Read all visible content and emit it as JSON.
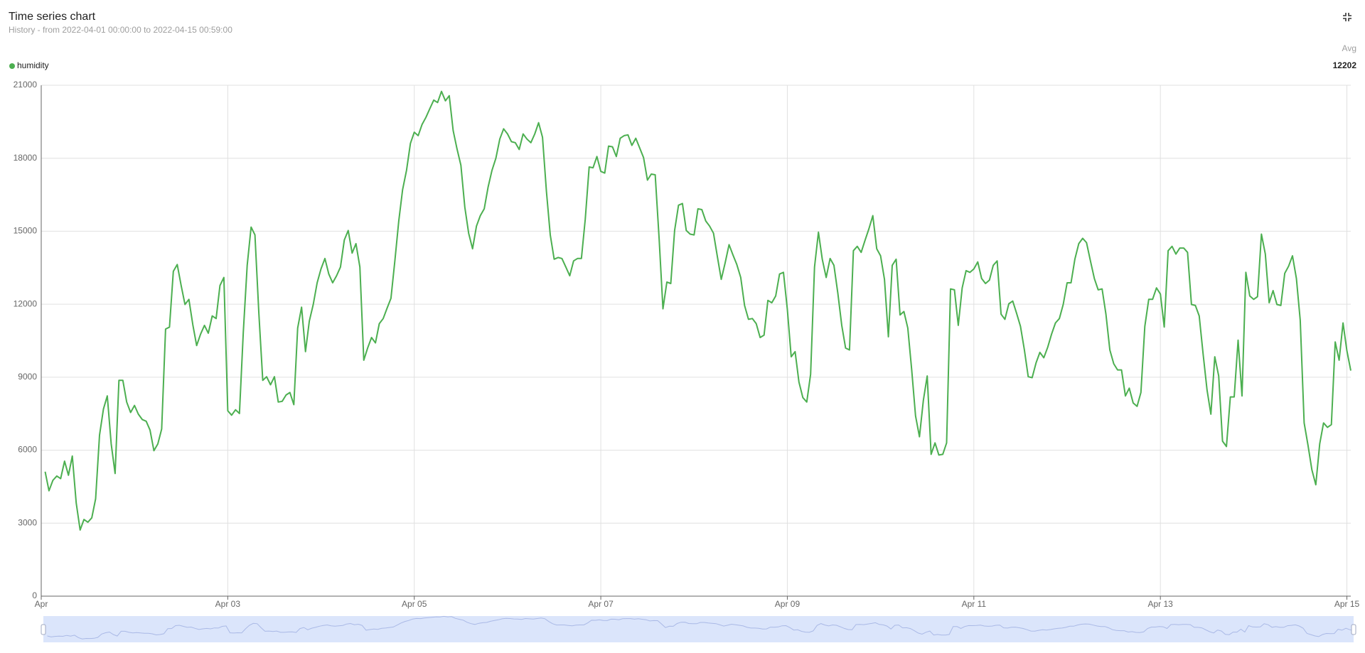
{
  "chart_data": {
    "type": "line",
    "title": "Time series chart",
    "subtitle": "History - from 2022-04-01 00:00:00 to 2022-04-15 00:59:00",
    "legend_stat_label": "Avg",
    "grid": true,
    "xlim": [
      0,
      337
    ],
    "xticks": [
      {
        "value": 0,
        "label": "Apr"
      },
      {
        "value": 48,
        "label": "Apr 03"
      },
      {
        "value": 96,
        "label": "Apr 05"
      },
      {
        "value": 144,
        "label": "Apr 07"
      },
      {
        "value": 192,
        "label": "Apr 09"
      },
      {
        "value": 240,
        "label": "Apr 11"
      },
      {
        "value": 288,
        "label": "Apr 13"
      },
      {
        "value": 336,
        "label": "Apr 15"
      }
    ],
    "ylim": [
      0,
      21000
    ],
    "yticks": [
      0,
      3000,
      6000,
      9000,
      12000,
      15000,
      18000,
      21000
    ],
    "x": [
      1,
      2,
      3,
      4,
      5,
      6,
      7,
      8,
      9,
      10,
      11,
      12,
      13,
      14,
      15,
      16,
      17,
      18,
      19,
      20,
      21,
      22,
      23,
      24,
      25,
      26,
      27,
      28,
      29,
      30,
      31,
      32,
      33,
      34,
      35,
      36,
      37,
      38,
      39,
      40,
      41,
      42,
      43,
      44,
      45,
      46,
      47,
      48,
      49,
      50,
      51,
      52,
      53,
      54,
      55,
      56,
      57,
      58,
      59,
      60,
      61,
      62,
      63,
      64,
      65,
      66,
      67,
      68,
      69,
      70,
      71,
      72,
      73,
      74,
      75,
      76,
      77,
      78,
      79,
      80,
      81,
      82,
      83,
      84,
      85,
      86,
      87,
      88,
      89,
      90,
      91,
      92,
      93,
      94,
      95,
      96,
      97,
      98,
      99,
      100,
      101,
      102,
      103,
      104,
      105,
      106,
      107,
      108,
      109,
      110,
      111,
      112,
      113,
      114,
      115,
      116,
      117,
      118,
      119,
      120,
      121,
      122,
      123,
      124,
      125,
      126,
      127,
      128,
      129,
      130,
      131,
      132,
      133,
      134,
      135,
      136,
      137,
      138,
      139,
      140,
      141,
      142,
      143,
      144,
      145,
      146,
      147,
      148,
      149,
      150,
      151,
      152,
      153,
      154,
      155,
      156,
      157,
      158,
      159,
      160,
      161,
      162,
      163,
      164,
      165,
      166,
      167,
      168,
      169,
      170,
      171,
      172,
      173,
      174,
      175,
      176,
      177,
      178,
      179,
      180,
      181,
      182,
      183,
      184,
      185,
      186,
      187,
      188,
      189,
      190,
      191,
      192,
      193,
      194,
      195,
      196,
      197,
      198,
      199,
      200,
      201,
      202,
      203,
      204,
      205,
      206,
      207,
      208,
      209,
      210,
      211,
      212,
      213,
      214,
      215,
      216,
      217,
      218,
      219,
      220,
      221,
      222,
      223,
      224,
      225,
      226,
      227,
      228,
      229,
      230,
      231,
      232,
      233,
      234,
      235,
      236,
      237,
      238,
      239,
      240,
      241,
      242,
      243,
      244,
      245,
      246,
      247,
      248,
      249,
      250,
      251,
      252,
      253,
      254,
      255,
      256,
      257,
      258,
      259,
      260,
      261,
      262,
      263,
      264,
      265,
      266,
      267,
      268,
      269,
      270,
      271,
      272,
      273,
      274,
      275,
      276,
      277,
      278,
      279,
      280,
      281,
      282,
      283,
      284,
      285,
      286,
      287,
      288,
      289,
      290,
      291,
      292,
      293,
      294,
      295,
      296,
      297,
      298,
      299,
      300,
      301,
      302,
      303,
      304,
      305,
      306,
      307,
      308,
      309,
      310,
      311,
      312,
      313,
      314,
      315,
      316,
      317,
      318,
      319,
      320,
      321,
      322,
      323,
      324,
      325,
      326,
      327,
      328,
      329,
      330,
      331,
      332,
      333,
      334,
      335,
      336,
      337
    ],
    "series": [
      {
        "name": "humidity",
        "color": "#4caf50",
        "avg": 12202,
        "values": [
          5116,
          4330,
          4760,
          4940,
          4830,
          5550,
          4970,
          5760,
          3830,
          2720,
          3150,
          3040,
          3220,
          4000,
          6620,
          7690,
          8230,
          6260,
          5040,
          8870,
          8870,
          7980,
          7550,
          7840,
          7480,
          7260,
          7190,
          6830,
          5980,
          6260,
          6870,
          10980,
          11060,
          13350,
          13630,
          12770,
          11990,
          12200,
          11160,
          10300,
          10770,
          11130,
          10810,
          11520,
          11410,
          12770,
          13100,
          7620,
          7440,
          7660,
          7510,
          10840,
          13600,
          15170,
          14850,
          11630,
          8870,
          9020,
          8690,
          9020,
          7980,
          8010,
          8270,
          8370,
          7870,
          11020,
          11880,
          10050,
          11310,
          11990,
          12880,
          13450,
          13880,
          13240,
          12880,
          13170,
          13530,
          14640,
          15030,
          14100,
          14490,
          13530,
          9700,
          10200,
          10630,
          10410,
          11200,
          11410,
          11840,
          12240,
          13780,
          15420,
          16710,
          17500,
          18610,
          19070,
          18930,
          19390,
          19680,
          20040,
          20390,
          20290,
          20750,
          20360,
          20570,
          19140,
          18390,
          17710,
          15990,
          14920,
          14280,
          15210,
          15640,
          15920,
          16820,
          17500,
          18000,
          18790,
          19210,
          19000,
          18680,
          18640,
          18360,
          19000,
          18790,
          18640,
          19000,
          19460,
          18860,
          16640,
          14850,
          13850,
          13920,
          13880,
          13530,
          13170,
          13780,
          13880,
          13880,
          15490,
          17640,
          17610,
          18070,
          17460,
          17390,
          18500,
          18470,
          18070,
          18820,
          18930,
          18960,
          18530,
          18820,
          18430,
          18030,
          17100,
          17350,
          17320,
          14710,
          11810,
          12910,
          12850,
          15030,
          16070,
          16140,
          15030,
          14880,
          14850,
          15920,
          15890,
          15420,
          15210,
          14920,
          13950,
          13020,
          13700,
          14450,
          14030,
          13630,
          13100,
          11950,
          11380,
          11410,
          11200,
          10630,
          10730,
          12160,
          12060,
          12340,
          13240,
          13310,
          11810,
          9840,
          10050,
          8800,
          8160,
          7980,
          9120,
          13530,
          14960,
          13850,
          13100,
          13880,
          13600,
          12450,
          11130,
          10200,
          10120,
          14200,
          14380,
          14130,
          14630,
          15100,
          15640,
          14280,
          13990,
          13020,
          10660,
          13600,
          13850,
          11560,
          11700,
          11020,
          9300,
          7410,
          6550,
          8050,
          9050,
          5830,
          6300,
          5800,
          5830,
          6300,
          12630,
          12590,
          11130,
          12670,
          13380,
          13310,
          13450,
          13740,
          13060,
          12850,
          12990,
          13600,
          13780,
          11590,
          11380,
          12020,
          12130,
          11630,
          11090,
          10120,
          9020,
          8980,
          9590,
          10020,
          9800,
          10230,
          10770,
          11230,
          11410,
          11990,
          12880,
          12880,
          13850,
          14490,
          14710,
          14530,
          13780,
          13060,
          12590,
          12630,
          11590,
          10120,
          9550,
          9300,
          9300,
          8230,
          8550,
          7940,
          7800,
          8370,
          11090,
          12200,
          12200,
          12670,
          12420,
          11060,
          14200,
          14380,
          14060,
          14310,
          14310,
          14130,
          11990,
          11950,
          11520,
          9950,
          8480,
          7480,
          9840,
          9050,
          6370,
          6150,
          8190,
          8190,
          10520,
          8230,
          13310,
          12340,
          12200,
          12310,
          14880,
          14060,
          12060,
          12560,
          11990,
          11950,
          13270,
          13560,
          13990,
          13060,
          11340,
          7120,
          6190,
          5190,
          4580,
          6260,
          7120,
          6940,
          7050,
          10450,
          9700,
          11230,
          10090,
          9270
        ]
      }
    ]
  }
}
